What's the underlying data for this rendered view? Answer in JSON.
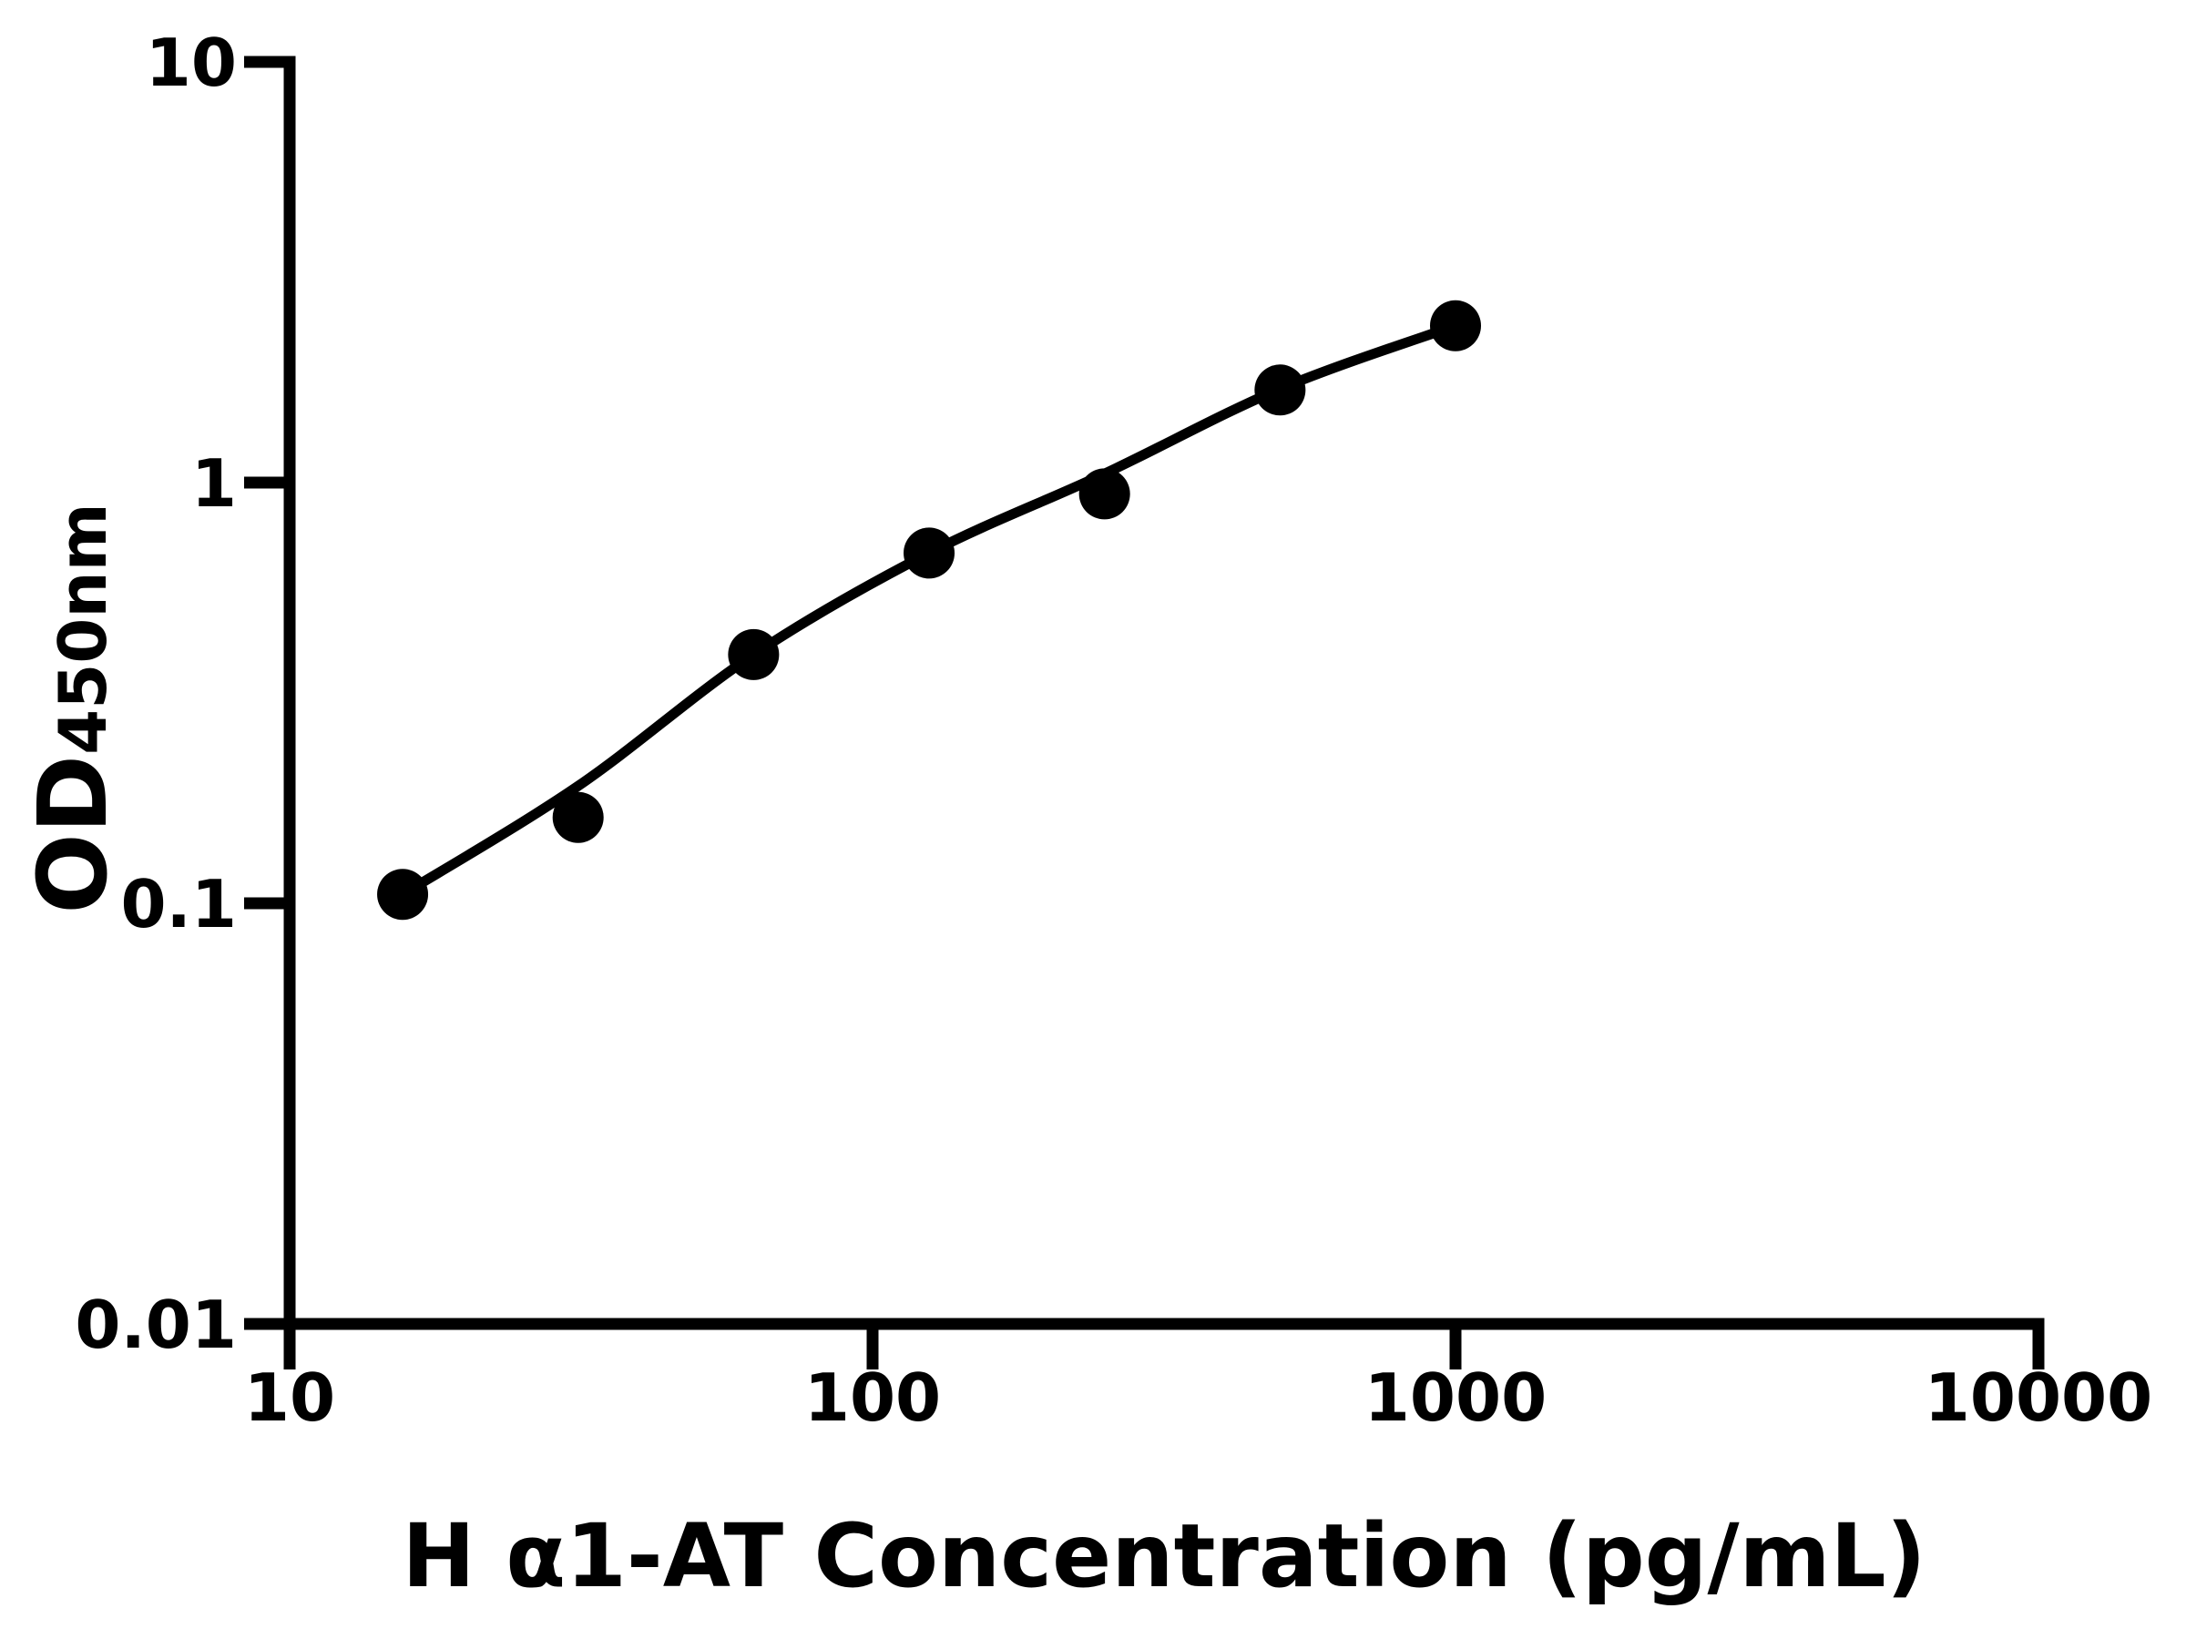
{
  "figure": {
    "background_color": "#ffffff",
    "ink_color": "#000000"
  },
  "chart_data": {
    "type": "scatter",
    "title": "",
    "xlabel": "H α1-AT Concentration (pg/mL)",
    "ylabel": "OD",
    "ylabel_subscript": "450nm",
    "x_scale": "log",
    "y_scale": "log",
    "xlim": [
      10,
      10000
    ],
    "ylim": [
      0.01,
      10
    ],
    "grid": false,
    "legend": "none",
    "x": [
      15.625,
      31.25,
      62.5,
      125,
      250,
      500,
      1000
    ],
    "y": [
      0.105,
      0.16,
      0.39,
      0.68,
      0.94,
      1.66,
      2.36
    ],
    "curve_y": [
      0.105,
      0.19,
      0.39,
      0.68,
      1.05,
      1.67,
      2.36
    ],
    "x_ticks": [
      {
        "value": 10,
        "label": "10"
      },
      {
        "value": 100,
        "label": "100"
      },
      {
        "value": 1000,
        "label": "1000"
      },
      {
        "value": 10000,
        "label": "10000"
      }
    ],
    "y_ticks": [
      {
        "value": 0.01,
        "label": "0.01"
      },
      {
        "value": 0.1,
        "label": "0.1"
      },
      {
        "value": 1,
        "label": "1"
      },
      {
        "value": 10,
        "label": "10"
      }
    ],
    "marker": {
      "shape": "circle",
      "color": "#000000"
    },
    "line": {
      "style": "solid",
      "color": "#000000"
    }
  }
}
